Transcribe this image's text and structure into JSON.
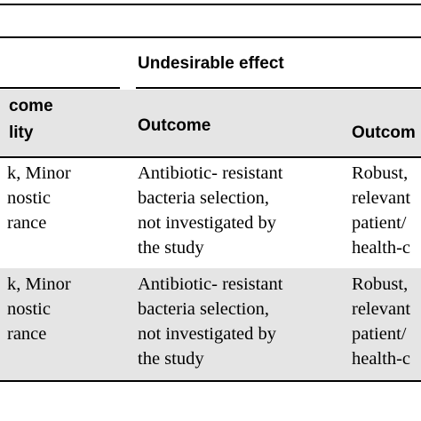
{
  "header": {
    "group_label": "Undesirable effect",
    "col1_line1": "come",
    "col1_line2": "lity",
    "col2_label": "Outcome",
    "col3_label": "Outcom"
  },
  "rows": [
    {
      "col1": [
        "k, Minor",
        "nostic",
        "rance"
      ],
      "col2": [
        "Antibiotic- resistant",
        "bacteria selection,",
        "not investigated by",
        "the study"
      ],
      "col3": [
        "Robust,",
        "relevant",
        "patient/",
        "health-c"
      ]
    },
    {
      "col1": [
        "k, Minor",
        "nostic",
        "rance"
      ],
      "col2": [
        "Antibiotic- resistant",
        "bacteria selection,",
        "not investigated by",
        "the study"
      ],
      "col3": [
        "Robust,",
        "relevant",
        "patient/",
        "health-c"
      ]
    }
  ],
  "colors": {
    "header_shade": "#e5e5e5",
    "rule": "#000000"
  }
}
